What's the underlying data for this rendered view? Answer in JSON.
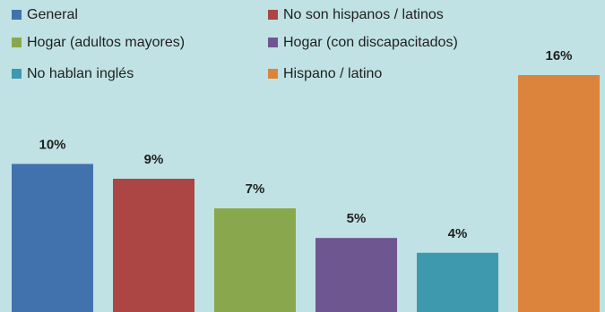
{
  "chart_data": {
    "type": "bar",
    "title": "",
    "xlabel": "",
    "ylabel": "",
    "ylim": [
      0,
      16
    ],
    "grid": false,
    "legend_position": "top",
    "categories": [
      "General",
      "No son hispanos / latinos",
      "Hogar (adultos mayores)",
      "Hogar (con discapacitados)",
      "No hablan inglés",
      "Hispano / latino"
    ],
    "values": [
      10,
      9,
      7,
      5,
      4,
      16
    ],
    "data_labels": [
      "10%",
      "9%",
      "7%",
      "5%",
      "4%",
      "16%"
    ],
    "colors": [
      "#4272ad",
      "#ab4645",
      "#89a84d",
      "#6e5690",
      "#3e98ae",
      "#dc843b"
    ],
    "background": "#c0e2e4"
  }
}
